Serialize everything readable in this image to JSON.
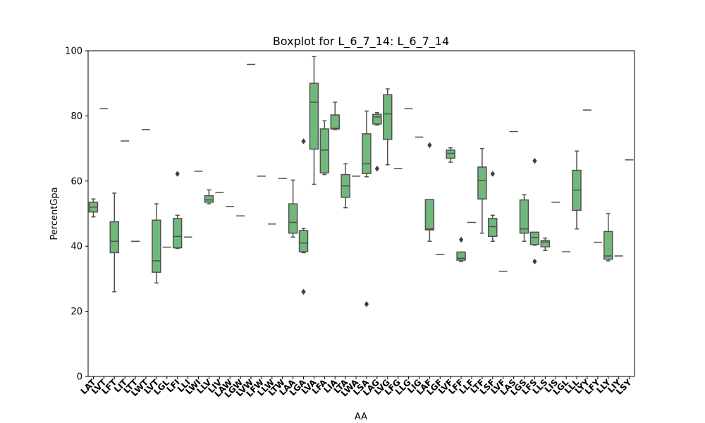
{
  "chart_data": {
    "type": "box",
    "title": "Boxplot for L_6_7_14: L_6_7_14",
    "xlabel": "AA",
    "ylabel": "PercentGpa",
    "ylim": [
      0,
      100
    ],
    "yticks": [
      0,
      20,
      40,
      60,
      80,
      100
    ],
    "grid": false,
    "box_color": "#72b87c",
    "line_color": "#505050",
    "categories": [
      "LAT",
      "LVT",
      "LFT",
      "LIT",
      "LTT",
      "LWT",
      "LVT",
      "LGL",
      "LFI",
      "LLI",
      "LWI",
      "LLV",
      "LIV",
      "LAW",
      "LGW",
      "LVW",
      "LFW",
      "LLW",
      "LTW",
      "LAA",
      "LGA",
      "LVA",
      "LFA",
      "LIA",
      "LTA",
      "LWA",
      "LSA",
      "LAG",
      "LVG",
      "LFG",
      "LLG",
      "LIG",
      "LAF",
      "LGF",
      "LVF",
      "LFF",
      "LLF",
      "LTF",
      "LSF",
      "LVF",
      "LAS",
      "LGS",
      "LFS",
      "LLS",
      "LIS",
      "LGL",
      "LLL",
      "LYY",
      "LFY",
      "LLY",
      "LIY",
      "LSY"
    ],
    "boxes": [
      {
        "whislo": 49,
        "q1": 50.5,
        "med": 52,
        "q3": 53.5,
        "whishi": 54.5,
        "fliers": []
      },
      {
        "whislo": 82.2,
        "q1": 82.2,
        "med": 82.2,
        "q3": 82.2,
        "whishi": 82.2,
        "fliers": []
      },
      {
        "whislo": 26,
        "q1": 38,
        "med": 41.5,
        "q3": 47.5,
        "whishi": 56.3,
        "fliers": []
      },
      {
        "whislo": 72.3,
        "q1": 72.3,
        "med": 72.3,
        "q3": 72.3,
        "whishi": 72.3,
        "fliers": []
      },
      {
        "whislo": 41.5,
        "q1": 41.5,
        "med": 41.5,
        "q3": 41.5,
        "whishi": 41.5,
        "fliers": []
      },
      {
        "whislo": 75.8,
        "q1": 75.8,
        "med": 75.8,
        "q3": 75.8,
        "whishi": 75.8,
        "fliers": []
      },
      {
        "whislo": 28.7,
        "q1": 32,
        "med": 35.5,
        "q3": 48,
        "whishi": 53,
        "fliers": []
      },
      {
        "whislo": 39.7,
        "q1": 39.7,
        "med": 39.7,
        "q3": 39.7,
        "whishi": 39.7,
        "fliers": []
      },
      {
        "whislo": 39.3,
        "q1": 39.5,
        "med": 43,
        "q3": 48.5,
        "whishi": 49.5,
        "fliers": [
          62.2
        ]
      },
      {
        "whislo": 42.8,
        "q1": 42.8,
        "med": 42.8,
        "q3": 42.8,
        "whishi": 42.8,
        "fliers": []
      },
      {
        "whislo": 63,
        "q1": 63,
        "med": 63,
        "q3": 63,
        "whishi": 63,
        "fliers": []
      },
      {
        "whislo": 53,
        "q1": 53.5,
        "med": 54.2,
        "q3": 55.5,
        "whishi": 57.3,
        "fliers": []
      },
      {
        "whislo": 56.5,
        "q1": 56.5,
        "med": 56.5,
        "q3": 56.5,
        "whishi": 56.5,
        "fliers": []
      },
      {
        "whislo": 52.2,
        "q1": 52.2,
        "med": 52.2,
        "q3": 52.2,
        "whishi": 52.2,
        "fliers": []
      },
      {
        "whislo": 49.3,
        "q1": 49.3,
        "med": 49.3,
        "q3": 49.3,
        "whishi": 49.3,
        "fliers": []
      },
      {
        "whislo": 95.8,
        "q1": 95.8,
        "med": 95.8,
        "q3": 95.8,
        "whishi": 95.8,
        "fliers": []
      },
      {
        "whislo": 61.5,
        "q1": 61.5,
        "med": 61.5,
        "q3": 61.5,
        "whishi": 61.5,
        "fliers": []
      },
      {
        "whislo": 46.8,
        "q1": 46.8,
        "med": 46.8,
        "q3": 46.8,
        "whishi": 46.8,
        "fliers": []
      },
      {
        "whislo": 60.8,
        "q1": 60.8,
        "med": 60.8,
        "q3": 60.8,
        "whishi": 60.8,
        "fliers": []
      },
      {
        "whislo": 42.8,
        "q1": 44,
        "med": 47.3,
        "q3": 53,
        "whishi": 60.3,
        "fliers": []
      },
      {
        "whislo": 38,
        "q1": 38.3,
        "med": 41,
        "q3": 44.8,
        "whishi": 45.5,
        "fliers": [
          72.2,
          26
        ]
      },
      {
        "whislo": 59,
        "q1": 69.8,
        "med": 84.2,
        "q3": 90,
        "whishi": 98.2,
        "fliers": []
      },
      {
        "whislo": 62,
        "q1": 62.5,
        "med": 69.5,
        "q3": 76,
        "whishi": 78.5,
        "fliers": []
      },
      {
        "whislo": 75.8,
        "q1": 76,
        "med": 76.2,
        "q3": 80.3,
        "whishi": 84.2,
        "fliers": []
      },
      {
        "whislo": 51.8,
        "q1": 55,
        "med": 58.5,
        "q3": 62,
        "whishi": 65.3,
        "fliers": []
      },
      {
        "whislo": 61.5,
        "q1": 61.5,
        "med": 61.5,
        "q3": 61.5,
        "whishi": 61.5,
        "fliers": []
      },
      {
        "whislo": 61.3,
        "q1": 62.3,
        "med": 65.3,
        "q3": 74.5,
        "whishi": 81.5,
        "fliers": [
          22.2
        ]
      },
      {
        "whislo": 77.2,
        "q1": 77.5,
        "med": 79.7,
        "q3": 80.5,
        "whishi": 81,
        "fliers": [
          63.8
        ]
      },
      {
        "whislo": 65,
        "q1": 72.8,
        "med": 80.6,
        "q3": 86.5,
        "whishi": 88.3,
        "fliers": []
      },
      {
        "whislo": 63.8,
        "q1": 63.8,
        "med": 63.8,
        "q3": 63.8,
        "whishi": 63.8,
        "fliers": []
      },
      {
        "whislo": 82.2,
        "q1": 82.2,
        "med": 82.2,
        "q3": 82.2,
        "whishi": 82.2,
        "fliers": []
      },
      {
        "whislo": 73.5,
        "q1": 73.5,
        "med": 73.5,
        "q3": 73.5,
        "whishi": 73.5,
        "fliers": []
      },
      {
        "whislo": 41.5,
        "q1": 45,
        "med": 45.3,
        "q3": 54.3,
        "whishi": 54.3,
        "fliers": [
          71
        ]
      },
      {
        "whislo": 37.5,
        "q1": 37.5,
        "med": 37.5,
        "q3": 37.5,
        "whishi": 37.5,
        "fliers": []
      },
      {
        "whislo": 65.8,
        "q1": 67,
        "med": 68.5,
        "q3": 69.5,
        "whishi": 70.2,
        "fliers": []
      },
      {
        "whislo": 35.3,
        "q1": 35.7,
        "med": 36.3,
        "q3": 38.2,
        "whishi": 38.2,
        "fliers": [
          42
        ]
      },
      {
        "whislo": 47.3,
        "q1": 47.3,
        "med": 47.3,
        "q3": 47.3,
        "whishi": 47.3,
        "fliers": []
      },
      {
        "whislo": 44,
        "q1": 54.5,
        "med": 60.2,
        "q3": 64.3,
        "whishi": 70,
        "fliers": []
      },
      {
        "whislo": 41.5,
        "q1": 43,
        "med": 46,
        "q3": 48.5,
        "whishi": 49.5,
        "fliers": [
          62.2
        ]
      },
      {
        "whislo": 32.3,
        "q1": 32.3,
        "med": 32.3,
        "q3": 32.3,
        "whishi": 32.3,
        "fliers": []
      },
      {
        "whislo": 75.2,
        "q1": 75.2,
        "med": 75.2,
        "q3": 75.2,
        "whishi": 75.2,
        "fliers": []
      },
      {
        "whislo": 41.5,
        "q1": 44,
        "med": 45.3,
        "q3": 54.2,
        "whishi": 55.8,
        "fliers": []
      },
      {
        "whislo": 40.3,
        "q1": 40.5,
        "med": 42.7,
        "q3": 44.3,
        "whishi": 44.3,
        "fliers": [
          66.2,
          35.3
        ]
      },
      {
        "whislo": 38.7,
        "q1": 39.8,
        "med": 41.3,
        "q3": 41.7,
        "whishi": 42.5,
        "fliers": []
      },
      {
        "whislo": 53.5,
        "q1": 53.5,
        "med": 53.5,
        "q3": 53.5,
        "whishi": 53.5,
        "fliers": []
      },
      {
        "whislo": 38.3,
        "q1": 38.3,
        "med": 38.3,
        "q3": 38.3,
        "whishi": 38.3,
        "fliers": []
      },
      {
        "whislo": 45.3,
        "q1": 51,
        "med": 57.2,
        "q3": 63.3,
        "whishi": 69.2,
        "fliers": []
      },
      {
        "whislo": 81.8,
        "q1": 81.8,
        "med": 81.8,
        "q3": 81.8,
        "whishi": 81.8,
        "fliers": []
      },
      {
        "whislo": 41.2,
        "q1": 41.2,
        "med": 41.2,
        "q3": 41.2,
        "whishi": 41.2,
        "fliers": []
      },
      {
        "whislo": 35.5,
        "q1": 36,
        "med": 37,
        "q3": 44.5,
        "whishi": 50,
        "fliers": []
      },
      {
        "whislo": 37,
        "q1": 37,
        "med": 37,
        "q3": 37,
        "whishi": 37,
        "fliers": []
      },
      {
        "whislo": 66.5,
        "q1": 66.5,
        "med": 66.5,
        "q3": 66.5,
        "whishi": 66.5,
        "fliers": []
      }
    ]
  }
}
